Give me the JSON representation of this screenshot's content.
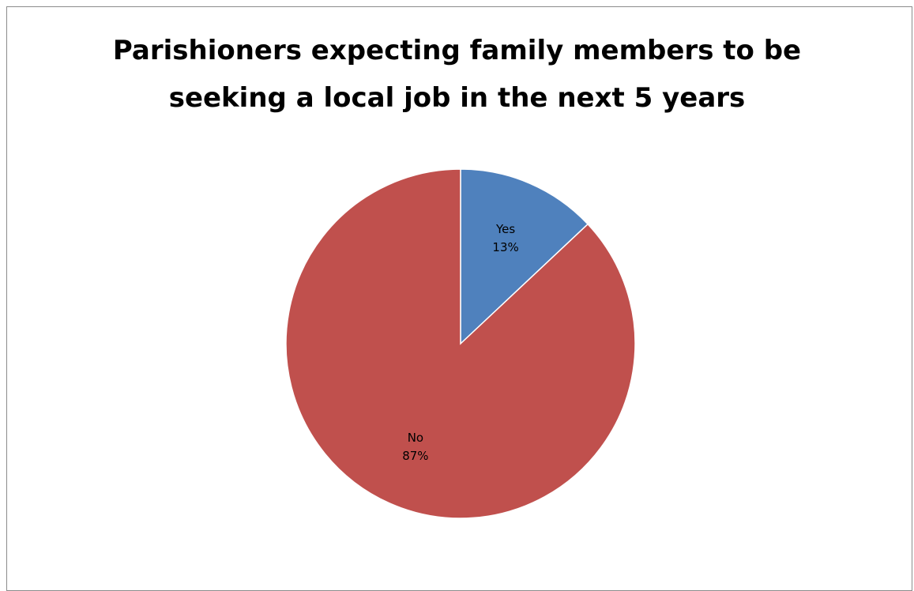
{
  "chart_data": {
    "type": "pie",
    "title_lines": [
      "Parishioners expecting family members to be",
      "seeking a local job in the next 5 years"
    ],
    "slices": [
      {
        "label": "Yes",
        "value": 13,
        "percent_label": "13%",
        "color": "#4f81bd"
      },
      {
        "label": "No",
        "value": 87,
        "percent_label": "87%",
        "color": "#c0504d"
      }
    ],
    "start_angle_deg": 0,
    "direction": "clockwise",
    "legend": "none",
    "data_labels": "inside"
  }
}
